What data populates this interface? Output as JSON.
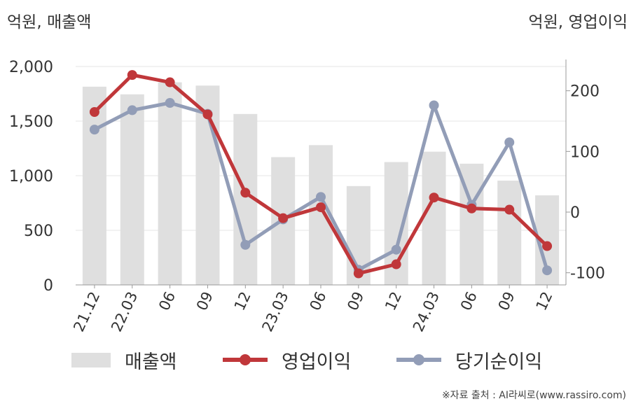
{
  "units": {
    "left": "억원, 매출액",
    "right": "억원, 영업이익"
  },
  "legend": [
    {
      "label": "매출액",
      "kind": "bar"
    },
    {
      "label": "영업이익",
      "kind": "line"
    },
    {
      "label": "당기순이익",
      "kind": "line"
    }
  ],
  "source": "※자료 출처 : AI라씨로(www.rassiro.com)",
  "colors": {
    "sales": "#dfdfdf",
    "operating": "#c0373a",
    "net": "#929db7",
    "grid": "#e6e6e6",
    "axis": "#999999"
  },
  "chart_data": {
    "type": "bar",
    "categories": [
      "21.12",
      "22.03",
      "06",
      "09",
      "12",
      "23.03",
      "06",
      "09",
      "12",
      "24.03",
      "06",
      "09",
      "12"
    ],
    "y_left": {
      "ticks": [
        "0",
        "500",
        "1,000",
        "1,500",
        "2,000"
      ],
      "min": 0,
      "max": 2000
    },
    "y_right": {
      "ticks": [
        "-100",
        "0",
        "100",
        "200"
      ],
      "min": -120,
      "max": 240
    },
    "series": [
      {
        "name": "매출액",
        "type": "bar",
        "axis": "left",
        "values": [
          1815,
          1745,
          1855,
          1825,
          1565,
          1170,
          1280,
          905,
          1125,
          1220,
          1110,
          955,
          820
        ]
      },
      {
        "name": "영업이익",
        "type": "line",
        "axis": "right",
        "values": [
          165,
          226,
          214,
          161,
          32,
          -10,
          8,
          -101,
          -86,
          24,
          6,
          4,
          -56
        ]
      },
      {
        "name": "당기순이익",
        "type": "line",
        "axis": "right",
        "values": [
          136,
          168,
          180,
          162,
          -54,
          -12,
          25,
          -95,
          -62,
          176,
          12,
          115,
          -96
        ]
      }
    ],
    "grid": true,
    "legend_position": "bottom"
  }
}
